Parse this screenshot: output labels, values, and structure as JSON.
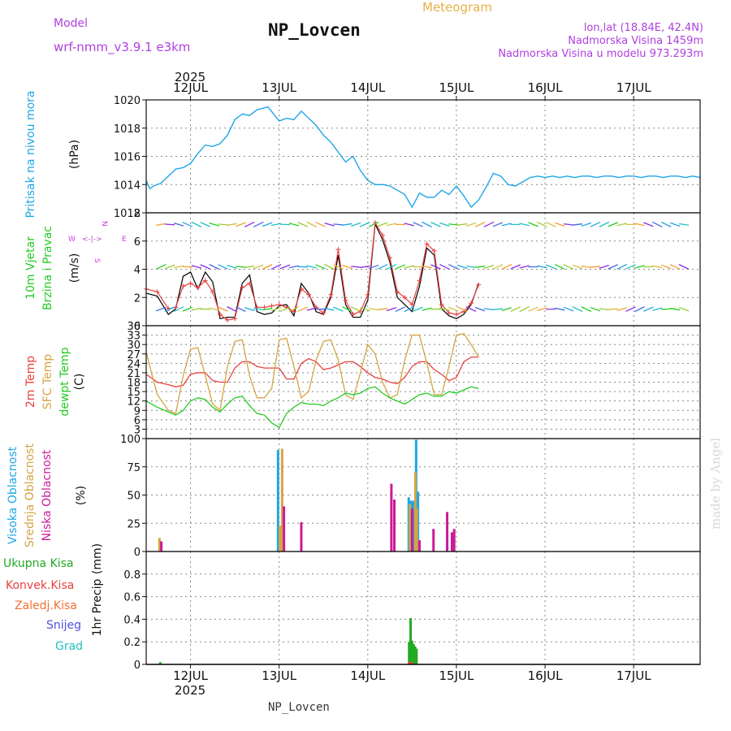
{
  "header": {
    "model_label": "Model",
    "model_name": "wrf-nmm_v3.9.1  e3km",
    "station": "NP_Lovcen",
    "title": "Meteogram",
    "lonlat": "lon,lat (18.84E, 42.4N)",
    "altitude": "Nadmorska Visina 1459m",
    "model_altitude": "Nadmorska Visina u modelu 973.293m",
    "year_top": "2025",
    "year_bottom": "2025",
    "footer_station": "NP_Lovcen",
    "watermark": "made by Angel"
  },
  "colors": {
    "pressure": "#1fa6e6",
    "wind_speed": "#000000",
    "wind_gust": "#e84040",
    "temp_2m": "#e84040",
    "sfc_temp": "#d6a440",
    "dewpt": "#22cc22",
    "cloud_high": "#1fa6e6",
    "cloud_mid": "#d6a440",
    "cloud_low": "#cc1a99",
    "rain_total": "#22aa22",
    "rain_conv": "#e84040",
    "rain_frozen": "#f07030",
    "snow": "#5050e0",
    "hail": "#20c0c0",
    "wind_legend": "#cc44dd",
    "header_purple": "#b040e0",
    "header_orange": "#e8b048"
  },
  "chart_data": [
    {
      "type": "line",
      "id": "pressure",
      "ylabel_title": "Pritisak na nivou mora",
      "ylabel_unit": "(hPa)",
      "ylim": [
        1012,
        1020
      ],
      "yticks": [
        1012,
        1014,
        1016,
        1018,
        1020
      ],
      "x_days": [
        "12JUL",
        "13JUL",
        "14JUL",
        "15JUL",
        "16JUL",
        "17JUL"
      ],
      "series": [
        {
          "name": "Pritisak",
          "x": [
            0,
            1,
            2,
            4,
            6,
            8,
            10,
            12,
            14,
            16,
            18,
            20,
            22,
            24,
            26,
            28,
            30,
            33,
            36,
            38,
            40,
            42,
            44,
            46,
            48,
            50,
            52,
            54,
            56,
            58,
            60,
            62,
            64,
            66,
            68,
            70,
            72,
            74,
            76,
            78,
            80,
            82,
            84,
            86,
            88,
            90,
            92,
            94,
            96,
            98,
            100,
            102,
            104,
            106,
            108,
            110,
            112,
            114,
            116,
            118,
            120,
            122,
            124,
            126,
            128,
            130,
            132,
            134,
            136,
            138,
            140,
            142,
            144,
            146,
            148,
            150
          ],
          "values": [
            1014.3,
            1013.7,
            1013.9,
            1014.1,
            1014.6,
            1015.1,
            1015.2,
            1015.5,
            1016.2,
            1016.8,
            1016.7,
            1016.9,
            1017.5,
            1018.6,
            1019.0,
            1018.9,
            1019.3,
            1019.5,
            1018.5,
            1018.7,
            1018.6,
            1019.2,
            1018.7,
            1018.2,
            1017.5,
            1017.0,
            1016.3,
            1015.6,
            1016.0,
            1015.0,
            1014.3,
            1014.0,
            1014.0,
            1013.9,
            1013.6,
            1013.3,
            1012.4,
            1013.4,
            1013.1,
            1013.1,
            1013.6,
            1013.3,
            1013.9,
            1013.2,
            1012.4,
            1012.9,
            1013.8,
            1014.8,
            1014.6,
            1014.0,
            1013.9,
            1014.2,
            1014.5,
            1014.6,
            1014.5,
            1014.6,
            1014.5,
            1014.6,
            1014.5,
            1014.6,
            1014.6,
            1014.5,
            1014.6,
            1014.6,
            1014.5,
            1014.6,
            1014.6,
            1014.5,
            1014.6,
            1014.6,
            1014.5,
            1014.6,
            1014.6,
            1014.5,
            1014.6,
            1014.5
          ]
        }
      ]
    },
    {
      "type": "line",
      "id": "wind",
      "ylabel_title1": "10m Vjetar",
      "ylabel_title2": "Brzina i Pravac",
      "ylabel_unit": "(m/s)",
      "ylim": [
        0,
        8
      ],
      "yticks": [
        0,
        2,
        4,
        6,
        8
      ],
      "legend": {
        "n": "N",
        "w": "W",
        "e": "E",
        "s": "S"
      },
      "series": [
        {
          "name": "10m wind",
          "x": [
            0,
            3,
            6,
            8,
            10,
            12,
            14,
            16,
            18,
            20,
            22,
            24,
            26,
            28,
            30,
            32,
            34,
            36,
            38,
            40,
            42,
            44,
            46,
            48,
            50,
            52,
            54,
            56,
            58,
            60,
            62,
            64,
            66,
            68,
            70,
            72,
            74,
            76,
            78,
            80,
            82,
            84,
            86,
            88,
            90
          ],
          "values": [
            2.3,
            2.1,
            0.8,
            1.2,
            3.5,
            3.8,
            2.6,
            3.8,
            3.1,
            0.5,
            0.6,
            0.6,
            3.0,
            3.6,
            1.0,
            0.8,
            0.9,
            1.4,
            1.5,
            0.7,
            3.0,
            2.3,
            1.0,
            0.8,
            2.0,
            5.0,
            1.5,
            0.6,
            0.6,
            1.8,
            7.2,
            6.1,
            4.5,
            2.0,
            1.5,
            1.0,
            2.8,
            5.5,
            5.0,
            1.2,
            0.7,
            0.5,
            0.8,
            1.5,
            3.0
          ]
        },
        {
          "name": "gust",
          "x": [
            0,
            3,
            6,
            8,
            10,
            12,
            14,
            16,
            18,
            20,
            22,
            24,
            26,
            28,
            30,
            32,
            34,
            36,
            38,
            40,
            42,
            44,
            46,
            48,
            50,
            52,
            54,
            56,
            58,
            60,
            62,
            64,
            66,
            68,
            70,
            72,
            74,
            76,
            78,
            80,
            82,
            84,
            86,
            88,
            90
          ],
          "values": [
            2.6,
            2.4,
            1.2,
            1.3,
            2.8,
            3.0,
            2.7,
            3.2,
            2.4,
            0.8,
            0.4,
            0.5,
            2.7,
            3.0,
            1.3,
            1.3,
            1.4,
            1.5,
            1.3,
            1.0,
            2.6,
            2.2,
            1.3,
            0.9,
            2.2,
            5.4,
            1.8,
            0.8,
            1.0,
            2.2,
            7.3,
            6.4,
            4.8,
            2.4,
            2.0,
            1.5,
            3.2,
            5.8,
            5.3,
            1.5,
            0.9,
            0.8,
            1.0,
            1.6,
            2.9
          ]
        }
      ]
    },
    {
      "type": "line",
      "id": "temperature",
      "ylabel_title1": "2m Temp",
      "ylabel_title2": "SFC Temp",
      "ylabel_title3": "dewpt Temp",
      "ylabel_unit": "(C)",
      "ylim": [
        0,
        36
      ],
      "yticks": [
        3,
        6,
        9,
        12,
        15,
        18,
        21,
        24,
        27,
        30,
        33,
        36
      ],
      "series": [
        {
          "name": "2m Temp",
          "x": [
            0,
            3,
            6,
            8,
            10,
            12,
            14,
            16,
            18,
            20,
            22,
            24,
            26,
            28,
            30,
            32,
            34,
            36,
            38,
            40,
            42,
            44,
            46,
            48,
            50,
            52,
            54,
            56,
            58,
            60,
            62,
            64,
            66,
            68,
            70,
            72,
            74,
            76,
            78,
            80,
            82,
            84,
            86,
            88,
            90
          ],
          "values": [
            20.5,
            18.0,
            17.2,
            16.5,
            17.0,
            20.5,
            21.0,
            21.0,
            18.5,
            18.0,
            18.0,
            22.5,
            24.5,
            24.5,
            23.0,
            22.5,
            22.5,
            22.5,
            19.0,
            19.0,
            24.0,
            25.5,
            24.5,
            22.0,
            22.5,
            23.5,
            24.5,
            24.5,
            23.0,
            21.0,
            19.5,
            19.0,
            18.0,
            17.5,
            19.5,
            23.0,
            24.5,
            24.5,
            22.0,
            20.5,
            18.5,
            19.5,
            24.5,
            26.0,
            26.0
          ]
        },
        {
          "name": "SFC Temp",
          "x": [
            0,
            3,
            6,
            8,
            10,
            12,
            14,
            16,
            18,
            20,
            22,
            24,
            26,
            28,
            30,
            32,
            34,
            36,
            38,
            40,
            42,
            44,
            46,
            48,
            50,
            52,
            54,
            56,
            58,
            60,
            62,
            64,
            66,
            68,
            70,
            72,
            74,
            76,
            78,
            80,
            82,
            84,
            86,
            88,
            90
          ],
          "values": [
            27.5,
            14.0,
            9.0,
            8.0,
            20.0,
            28.5,
            29.0,
            20.0,
            11.0,
            9.0,
            23.0,
            31.0,
            31.5,
            20.0,
            13.0,
            13.0,
            16.0,
            31.5,
            32.0,
            23.0,
            13.0,
            15.0,
            25.0,
            31.0,
            31.5,
            25.0,
            14.0,
            12.5,
            21.0,
            30.0,
            27.0,
            18.0,
            13.0,
            14.0,
            25.0,
            33.0,
            33.0,
            24.0,
            14.0,
            14.0,
            23.0,
            33.0,
            33.5,
            30.0,
            26.0
          ]
        },
        {
          "name": "dewpt Temp",
          "x": [
            0,
            3,
            6,
            8,
            10,
            12,
            14,
            16,
            18,
            20,
            22,
            24,
            26,
            28,
            30,
            32,
            34,
            36,
            38,
            40,
            42,
            44,
            46,
            48,
            50,
            52,
            54,
            56,
            58,
            60,
            62,
            64,
            66,
            68,
            70,
            72,
            74,
            76,
            78,
            80,
            82,
            84,
            86,
            88,
            90
          ],
          "values": [
            12.0,
            10.0,
            8.5,
            7.5,
            9.0,
            12.0,
            13.0,
            12.5,
            10.0,
            8.5,
            11.0,
            13.0,
            13.5,
            10.5,
            8.0,
            7.5,
            5.0,
            3.5,
            8.0,
            10.0,
            11.5,
            11.0,
            11.0,
            10.5,
            12.0,
            13.0,
            14.5,
            14.0,
            14.5,
            16.0,
            16.5,
            14.5,
            13.0,
            12.0,
            11.0,
            12.5,
            14.0,
            14.5,
            13.5,
            13.5,
            15.0,
            14.5,
            15.5,
            16.5,
            16.0
          ]
        }
      ]
    },
    {
      "type": "bar",
      "id": "clouds",
      "ylabel_title1": "Visoka Oblacnost",
      "ylabel_title2": "Srednja Oblacnost",
      "ylabel_title3": "Niska Oblacnost",
      "ylabel_unit": "(%)",
      "ylim": [
        0,
        100
      ],
      "yticks": [
        0,
        25,
        50,
        75,
        100
      ],
      "series": [
        {
          "name": "Visoka Oblacnost",
          "x": [
            35.7,
            71.1,
            71.7,
            72.3,
            73.1,
            73.6
          ],
          "values": [
            90,
            48,
            45,
            45,
            99,
            53
          ]
        },
        {
          "name": "Srednja Oblacnost",
          "x": [
            3.6,
            36.2,
            36.8,
            71.4,
            72.9,
            73.3
          ],
          "values": [
            12,
            23,
            91,
            42,
            70,
            38
          ]
        },
        {
          "name": "Niska Oblacnost",
          "x": [
            4.1,
            37.3,
            42.0,
            66.4,
            67.2,
            72.0,
            74.0,
            77.8,
            81.5,
            82.8,
            83.4
          ],
          "values": [
            9,
            40,
            26,
            60,
            46,
            38,
            10,
            20,
            35,
            17,
            20
          ]
        }
      ]
    },
    {
      "type": "bar",
      "id": "precip",
      "ylabel_title": "1hr Precip",
      "ylabel_unit": "(mm)",
      "ylim": [
        0,
        1.0
      ],
      "yticks": [
        0,
        0.2,
        0.4,
        0.6,
        0.8
      ],
      "legend": [
        "Ukupna Kisa",
        "Konvek.Kisa",
        "Zaledj.Kisa",
        "Snijeg",
        "Grad"
      ],
      "series": [
        {
          "name": "Ukupna Kisa",
          "x": [
            3.8,
            71.2,
            71.6,
            72.0,
            72.4,
            72.8,
            73.2
          ],
          "values": [
            0.02,
            0.2,
            0.41,
            0.21,
            0.18,
            0.16,
            0.14
          ]
        },
        {
          "name": "Konvek.Kisa",
          "x": [
            71.2,
            71.6,
            72.0
          ],
          "values": [
            0.02,
            0.02,
            0.02
          ]
        }
      ]
    }
  ]
}
